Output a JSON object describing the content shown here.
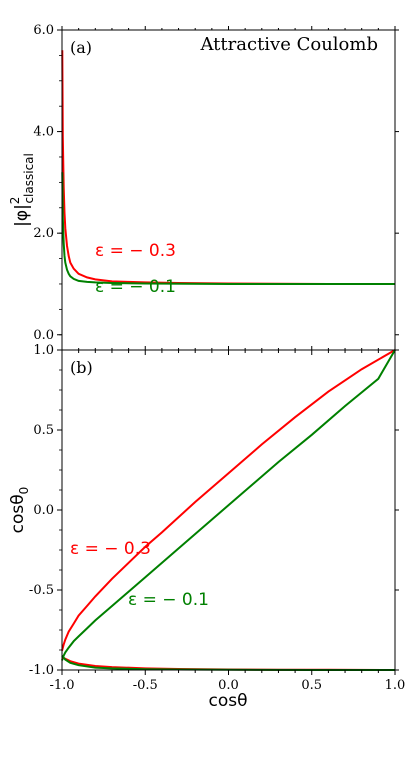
{
  "chart_data": [
    {
      "type": "line",
      "panel_label": "(a)",
      "title": "Attractive Coulomb",
      "ylabel": "|φ|²classical",
      "ylabel_main": "|φ|",
      "ylabel_sup": "2",
      "ylabel_sub": "classical",
      "xlim": [
        -1.0,
        1.0
      ],
      "ylim": [
        -0.3,
        6.0
      ],
      "yticks": [
        0.0,
        2.0,
        4.0,
        6.0
      ],
      "ytick_labels": [
        "0.0",
        "2.0",
        "4.0",
        "6.0"
      ],
      "grid": false,
      "series": [
        {
          "color": "#ff0000",
          "label": "ε = − 0.3",
          "x": [
            -0.998,
            -0.995,
            -0.99,
            -0.985,
            -0.98,
            -0.97,
            -0.96,
            -0.95,
            -0.93,
            -0.9,
            -0.85,
            -0.8,
            -0.7,
            -0.6,
            -0.5,
            -0.3,
            0.0,
            0.3,
            0.6,
            1.0
          ],
          "y": [
            5.6,
            3.9,
            2.9,
            2.4,
            2.1,
            1.75,
            1.55,
            1.42,
            1.3,
            1.2,
            1.13,
            1.09,
            1.05,
            1.04,
            1.03,
            1.02,
            1.01,
            1.005,
            1.0,
            1.0
          ]
        },
        {
          "color": "#008000",
          "label": "ε = − 0.1",
          "x": [
            -0.998,
            -0.995,
            -0.99,
            -0.985,
            -0.98,
            -0.97,
            -0.96,
            -0.95,
            -0.93,
            -0.9,
            -0.85,
            -0.8,
            -0.7,
            -0.5,
            0.0,
            0.5,
            1.0
          ],
          "y": [
            3.2,
            2.3,
            1.8,
            1.55,
            1.42,
            1.28,
            1.2,
            1.15,
            1.1,
            1.06,
            1.04,
            1.03,
            1.02,
            1.01,
            1.0,
            1.0,
            1.0
          ]
        }
      ]
    },
    {
      "type": "line",
      "panel_label": "(b)",
      "xlabel": "cosθ",
      "ylabel": "cosθ₀",
      "ylabel_main": "cosθ",
      "ylabel_sub": "0",
      "xlim": [
        -1.0,
        1.0
      ],
      "ylim": [
        -1.0,
        1.0
      ],
      "xticks": [
        -1.0,
        -0.5,
        0.0,
        0.5,
        1.0
      ],
      "xtick_labels": [
        "-1.0",
        "-0.5",
        "0.0",
        "0.5",
        "1.0"
      ],
      "yticks": [
        -1.0,
        -0.5,
        0.0,
        0.5,
        1.0
      ],
      "ytick_labels": [
        "-1.0",
        "-0.5",
        "0.0",
        "0.5",
        "1.0"
      ],
      "grid": false,
      "series": [
        {
          "color": "#ff0000",
          "label": "ε = − 0.3",
          "x": [
            -1.0,
            -0.99,
            -0.98,
            -0.96,
            -0.93,
            -0.9,
            -0.85,
            -0.8,
            -0.7,
            -0.6,
            -0.5,
            -0.4,
            -0.2,
            0.0,
            0.2,
            0.4,
            0.6,
            0.8,
            1.0
          ],
          "y": [
            -0.88,
            -0.84,
            -0.81,
            -0.76,
            -0.71,
            -0.66,
            -0.6,
            -0.54,
            -0.43,
            -0.33,
            -0.23,
            -0.14,
            0.05,
            0.23,
            0.41,
            0.58,
            0.74,
            0.88,
            1.0
          ]
        },
        {
          "color": "#008000",
          "label": "ε = − 0.1",
          "x": [
            -1.0,
            -0.99,
            -0.98,
            -0.96,
            -0.93,
            -0.9,
            -0.85,
            -0.8,
            -0.7,
            -0.5,
            -0.3,
            -0.1,
            0.1,
            0.3,
            0.5,
            0.7,
            0.9,
            1.0
          ],
          "y": [
            -0.94,
            -0.91,
            -0.89,
            -0.86,
            -0.82,
            -0.79,
            -0.74,
            -0.69,
            -0.6,
            -0.42,
            -0.24,
            -0.06,
            0.12,
            0.3,
            0.47,
            0.65,
            0.82,
            1.0
          ]
        },
        {
          "color": "#ff0000",
          "x": [
            -1.0,
            -0.98,
            -0.95,
            -0.9,
            -0.8,
            -0.7,
            -0.5,
            -0.3,
            0.0,
            0.3,
            0.6,
            1.0
          ],
          "y": [
            -0.92,
            -0.93,
            -0.945,
            -0.96,
            -0.975,
            -0.982,
            -0.99,
            -0.994,
            -0.997,
            -0.998,
            -0.999,
            -1.0
          ]
        },
        {
          "color": "#008000",
          "x": [
            -1.0,
            -0.98,
            -0.95,
            -0.9,
            -0.8,
            -0.7,
            -0.5,
            -0.3,
            0.0,
            0.5,
            1.0
          ],
          "y": [
            -0.91,
            -0.935,
            -0.955,
            -0.97,
            -0.985,
            -0.99,
            -0.995,
            -0.997,
            -0.999,
            -1.0,
            -1.0
          ]
        }
      ]
    }
  ]
}
